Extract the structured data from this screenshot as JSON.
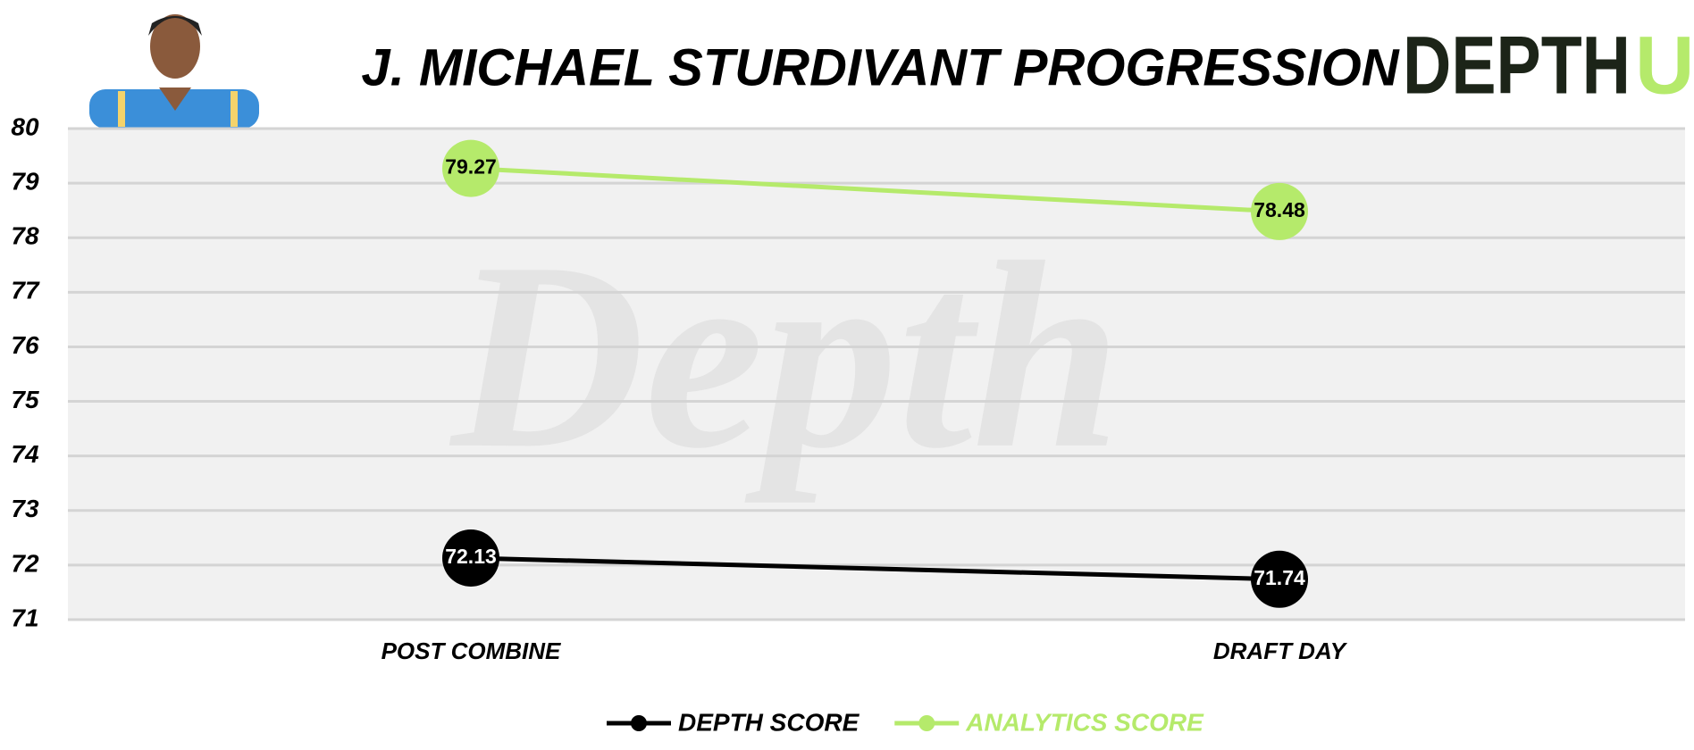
{
  "chart_data": {
    "type": "line",
    "title": "J. MICHAEL STURDIVANT PROGRESSION",
    "categories": [
      "POST COMBINE",
      "DRAFT DAY"
    ],
    "series": [
      {
        "name": "DEPTH SCORE",
        "color": "#000000",
        "label_color": "#ffffff",
        "values": [
          72.13,
          71.74
        ]
      },
      {
        "name": "ANALYTICS SCORE",
        "color": "#b5ea6b",
        "label_color": "#000000",
        "values": [
          79.27,
          78.48
        ]
      }
    ],
    "ylim": [
      71,
      80
    ],
    "yticks": [
      71,
      72,
      73,
      74,
      75,
      76,
      77,
      78,
      79,
      80
    ],
    "grid": true,
    "legend": "bottom"
  },
  "logo": {
    "text": "DEPTH",
    "accent": "U"
  },
  "watermark": "Depth"
}
